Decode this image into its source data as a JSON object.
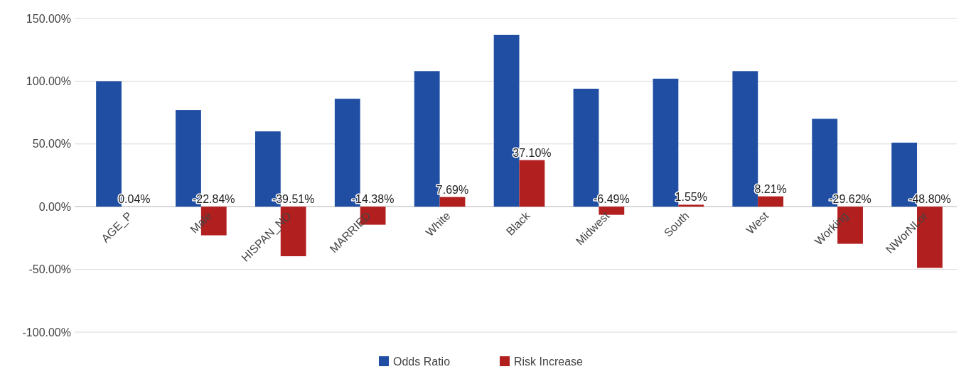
{
  "chart_data": {
    "type": "bar",
    "categories": [
      "AGE_P",
      "Male",
      "HISPAN_NO",
      "MARRIED",
      "White",
      "Black",
      "Midwest",
      "South",
      "West",
      "Working",
      "NWorNLor"
    ],
    "series": [
      {
        "name": "Odds Ratio",
        "color": "#1f4ea3",
        "values": [
          100,
          77,
          60,
          86,
          108,
          137,
          94,
          102,
          108,
          70,
          51
        ]
      },
      {
        "name": "Risk Increase",
        "color": "#b21f1f",
        "values": [
          0.04,
          -22.84,
          -39.51,
          -14.38,
          7.69,
          37.1,
          -6.49,
          1.55,
          8.21,
          -29.62,
          -48.8
        ],
        "value_labels": [
          "0.04%",
          "-22.84%",
          "-39.51%",
          "-14.38%",
          "7.69%",
          "37.10%",
          "-6.49%",
          "1.55%",
          "8.21%",
          "-29.62%",
          "-48.80%"
        ]
      }
    ],
    "ylim": [
      -100,
      150
    ],
    "yticks": [
      {
        "value": -100,
        "label": "-100.00%"
      },
      {
        "value": -50,
        "label": "-50.00%"
      },
      {
        "value": 0,
        "label": "0.00%"
      },
      {
        "value": 50,
        "label": "50.00%"
      },
      {
        "value": 100,
        "label": "100.00%"
      },
      {
        "value": 150,
        "label": "150.00%"
      }
    ],
    "grid": "y",
    "legend": "bottom"
  }
}
